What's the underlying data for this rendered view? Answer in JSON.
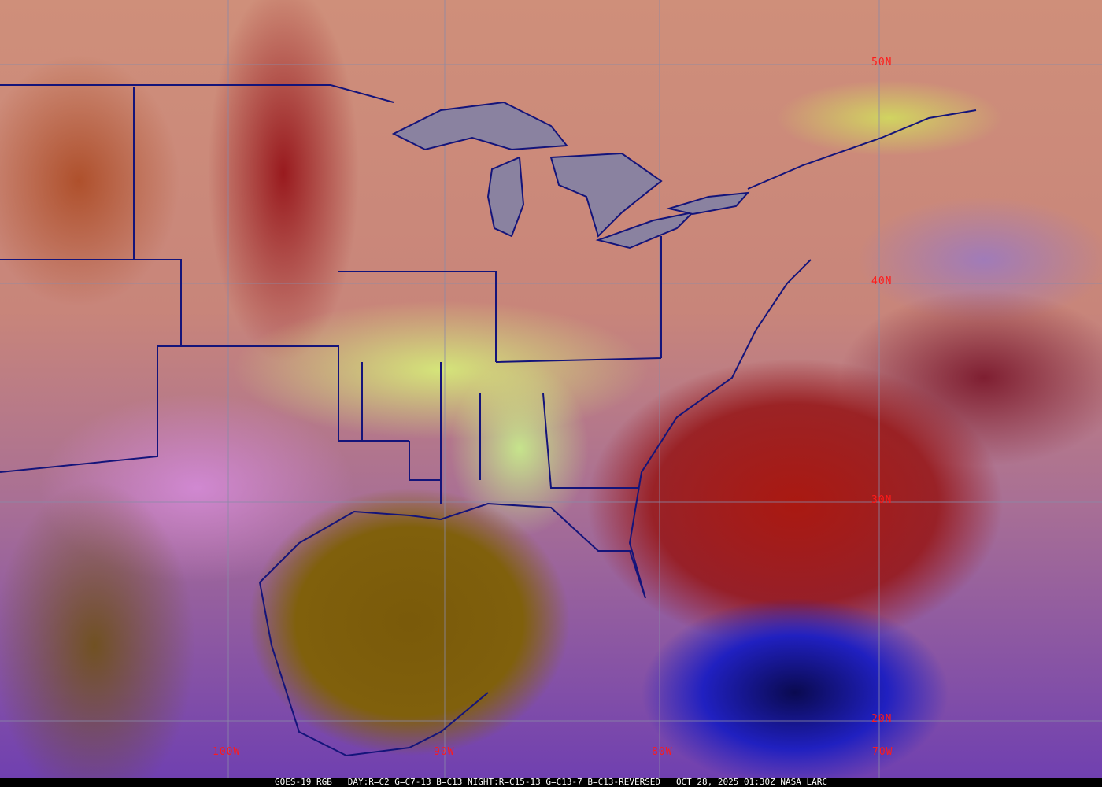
{
  "map": {
    "type": "satellite-rgb-composite",
    "colors": {
      "gridline": "#8a8aa8",
      "borders": "#14147a",
      "grid_label": "#ff1a1a"
    },
    "latitude_labels": [
      "50N",
      "40N",
      "30N",
      "20N"
    ],
    "longitude_labels": [
      "100W",
      "90W",
      "80W",
      "70W"
    ]
  },
  "caption": {
    "product": "GOES-19 RGB",
    "recipe": "DAY:R=C2 G=C7-13 B=C13 NIGHT:R=C15-13 G=C13-7 B=C13-REVERSED",
    "timestamp": "OCT 28, 2025 01:30Z",
    "credit": "NASA LARC"
  }
}
